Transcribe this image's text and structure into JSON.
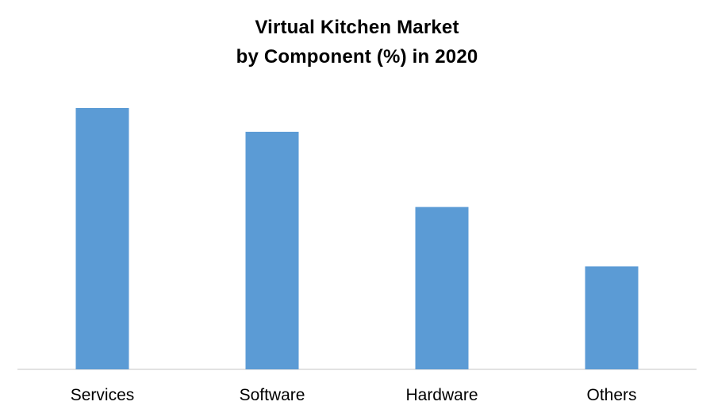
{
  "chart_data": {
    "type": "bar",
    "title_line1": "Virtual Kitchen Market",
    "title_line2": "by Component (%) in 2020",
    "categories": [
      "Services",
      "Software",
      "Hardware",
      "Others"
    ],
    "values": [
      33,
      30,
      20.5,
      13
    ],
    "ylim": [
      0,
      33
    ],
    "xlabel": "",
    "ylabel": "",
    "grid": false,
    "legend": "none",
    "bar_color": "#5B9BD5",
    "axis_color": "#D9D9D9"
  }
}
